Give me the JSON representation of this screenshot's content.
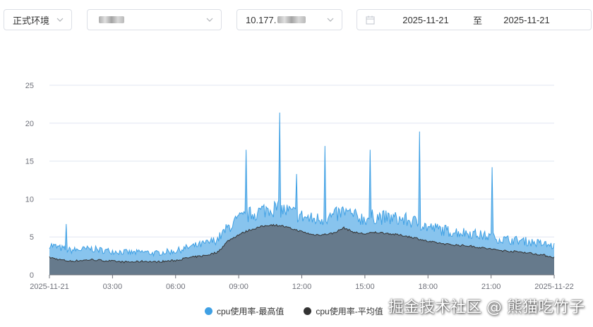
{
  "filters": {
    "environment": "正式环境",
    "host": "",
    "ip": "10.177.",
    "date_start": "2025-11-21",
    "date_separator": "至",
    "date_end": "2025-11-21"
  },
  "icons": {
    "dropdown": "chevron-down-icon",
    "calendar": "calendar-icon"
  },
  "colors": {
    "max_series": "#3fa0e4",
    "max_fill": "#88c4ee",
    "avg_series": "#333333",
    "avg_fill": "#667a8c",
    "grid": "#e0e6f1"
  },
  "watermark": "掘金技术社区 @ 熊猫吃竹子",
  "chart_data": {
    "type": "area",
    "title": "",
    "xlabel": "",
    "ylabel": "",
    "ylim": [
      0,
      25
    ],
    "yticks": [
      "0",
      "5",
      "10",
      "15",
      "20",
      "25"
    ],
    "xticks": [
      "2025-11-21",
      "03:00",
      "06:00",
      "09:00",
      "12:00",
      "15:00",
      "18:00",
      "21:00",
      "2025-11-22"
    ],
    "grid": true,
    "legend_position": "bottom-center",
    "x_unit": "hour_of_day",
    "x": [
      0,
      0.5,
      1,
      1.5,
      2,
      2.5,
      3,
      3.5,
      4,
      4.5,
      5,
      5.5,
      6,
      6.5,
      7,
      7.5,
      8,
      8.5,
      9,
      9.5,
      10,
      10.5,
      11,
      11.5,
      12,
      12.5,
      13,
      13.5,
      14,
      14.5,
      15,
      15.5,
      16,
      16.5,
      17,
      17.5,
      18,
      18.5,
      19,
      19.5,
      20,
      20.5,
      21,
      21.5,
      22,
      22.5,
      23,
      23.5,
      24
    ],
    "spikes": [
      {
        "x": 0.8,
        "value": 6.7
      },
      {
        "x": 9.35,
        "value": 16.5
      },
      {
        "x": 10.95,
        "value": 21.4
      },
      {
        "x": 11.75,
        "value": 13.3
      },
      {
        "x": 13.1,
        "value": 17.0
      },
      {
        "x": 15.25,
        "value": 16.5
      },
      {
        "x": 17.6,
        "value": 18.9
      },
      {
        "x": 21.05,
        "value": 14.2
      }
    ],
    "series": [
      {
        "name": "cpu使用率-最高值",
        "values": [
          3.8,
          3.4,
          3.1,
          3.2,
          3.3,
          3.1,
          3.0,
          2.9,
          2.8,
          2.9,
          2.7,
          2.9,
          3.0,
          3.4,
          3.7,
          4.0,
          4.5,
          6.0,
          7.0,
          7.6,
          8.0,
          8.5,
          8.3,
          7.9,
          7.4,
          7.0,
          7.1,
          7.4,
          8.0,
          7.4,
          7.1,
          7.4,
          7.2,
          7.1,
          6.9,
          6.6,
          6.0,
          5.8,
          5.5,
          5.4,
          5.3,
          5.0,
          4.8,
          4.5,
          4.4,
          4.3,
          4.1,
          3.9,
          3.6
        ]
      },
      {
        "name": "cpu使用率-平均值",
        "values": [
          2.3,
          2.0,
          1.8,
          1.9,
          2.0,
          1.9,
          1.8,
          1.7,
          1.7,
          1.8,
          1.7,
          1.8,
          1.9,
          2.2,
          2.4,
          2.6,
          3.0,
          4.5,
          5.3,
          5.9,
          6.3,
          6.6,
          6.5,
          6.1,
          5.7,
          5.3,
          5.3,
          5.5,
          6.2,
          5.6,
          5.4,
          5.6,
          5.5,
          5.3,
          5.1,
          4.8,
          4.4,
          4.2,
          4.0,
          3.9,
          3.8,
          3.6,
          3.4,
          3.2,
          3.1,
          3.0,
          2.8,
          2.6,
          2.3
        ]
      }
    ]
  }
}
